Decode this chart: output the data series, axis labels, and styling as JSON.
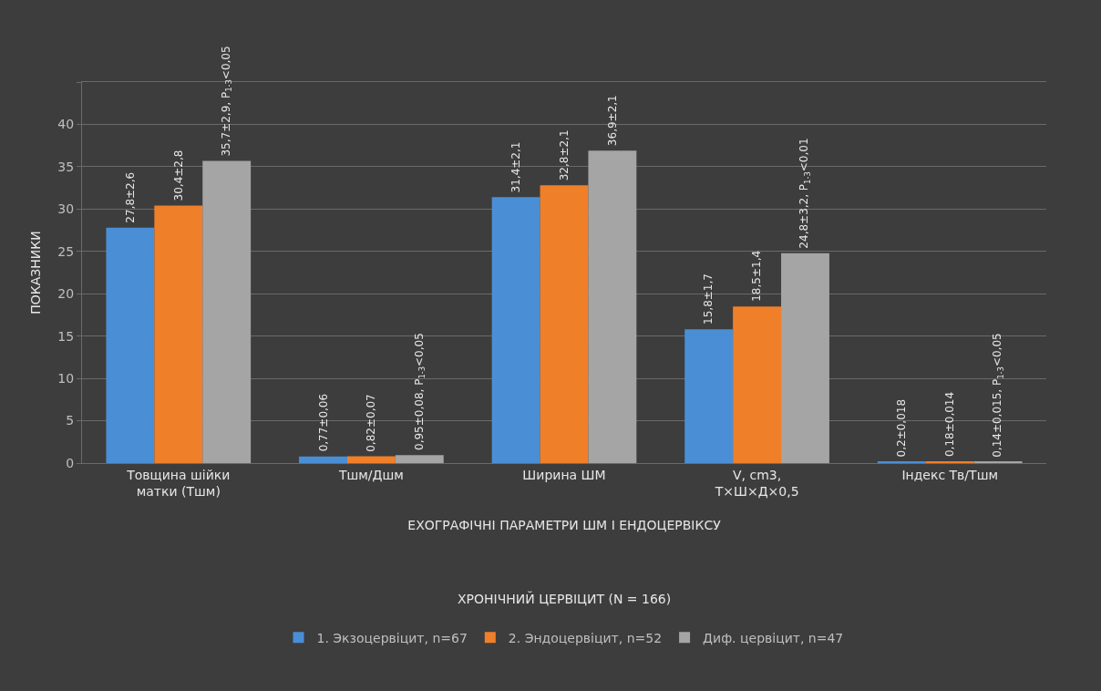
{
  "chart_data": {
    "type": "bar",
    "xlabel": "ЕХОГРАФІЧНІ ПАРАМЕТРИ ШМ І ЕНДОЦЕРВІКСУ",
    "ylabel": "ПОКАЗНИКИ",
    "annotations": [
      "ХРОНІЧНИЙ ЦЕРВІЦИТ (N = 166)"
    ],
    "categories": [
      "Товщина шійки матки (Тшм)",
      "Тшм/Дшм",
      "Ширина ШМ",
      "V, cm3, Т×Ш×Д×0,5",
      "Індекс Тв/Тшм"
    ],
    "series": [
      {
        "name": "1. Экзоцервіцит, n=67",
        "color": "#4a8fd6",
        "values": [
          27.8,
          0.77,
          31.4,
          15.8,
          0.2
        ],
        "value_labels": [
          "27,8±2,6",
          "0,77±0,06",
          "31,4±2,1",
          "15,8±1,7",
          "0,2±0,018"
        ]
      },
      {
        "name": "2. Эндоцервіцит, n=52",
        "color": "#f07f2a",
        "values": [
          30.4,
          0.82,
          32.8,
          18.5,
          0.18
        ],
        "value_labels": [
          "30,4±2,8",
          "0,82±0,07",
          "32,8±2,1",
          "18,5±1,4",
          "0,18±0,014"
        ]
      },
      {
        "name": "Диф. цервіцит, n=47",
        "color": "#a5a5a5",
        "values": [
          35.7,
          0.95,
          36.9,
          24.8,
          0.14
        ],
        "value_labels": [
          "35,7±2,9, P$_{1-3}$<0,05",
          "0,95±0,08, P$_{1-3}$<0,05",
          "36,9±2,1",
          "24,8±3,2, P$_{1-3}$<0,01",
          "0,14±0,015, P$_{1-3}$<0,05"
        ]
      }
    ],
    "ylim": [
      0,
      45
    ],
    "yticks": [
      0,
      5,
      10,
      15,
      20,
      25,
      30,
      35,
      40,
      {
        "value": 45,
        "label": null
      }
    ],
    "grid": "y",
    "legend": "bottom"
  }
}
